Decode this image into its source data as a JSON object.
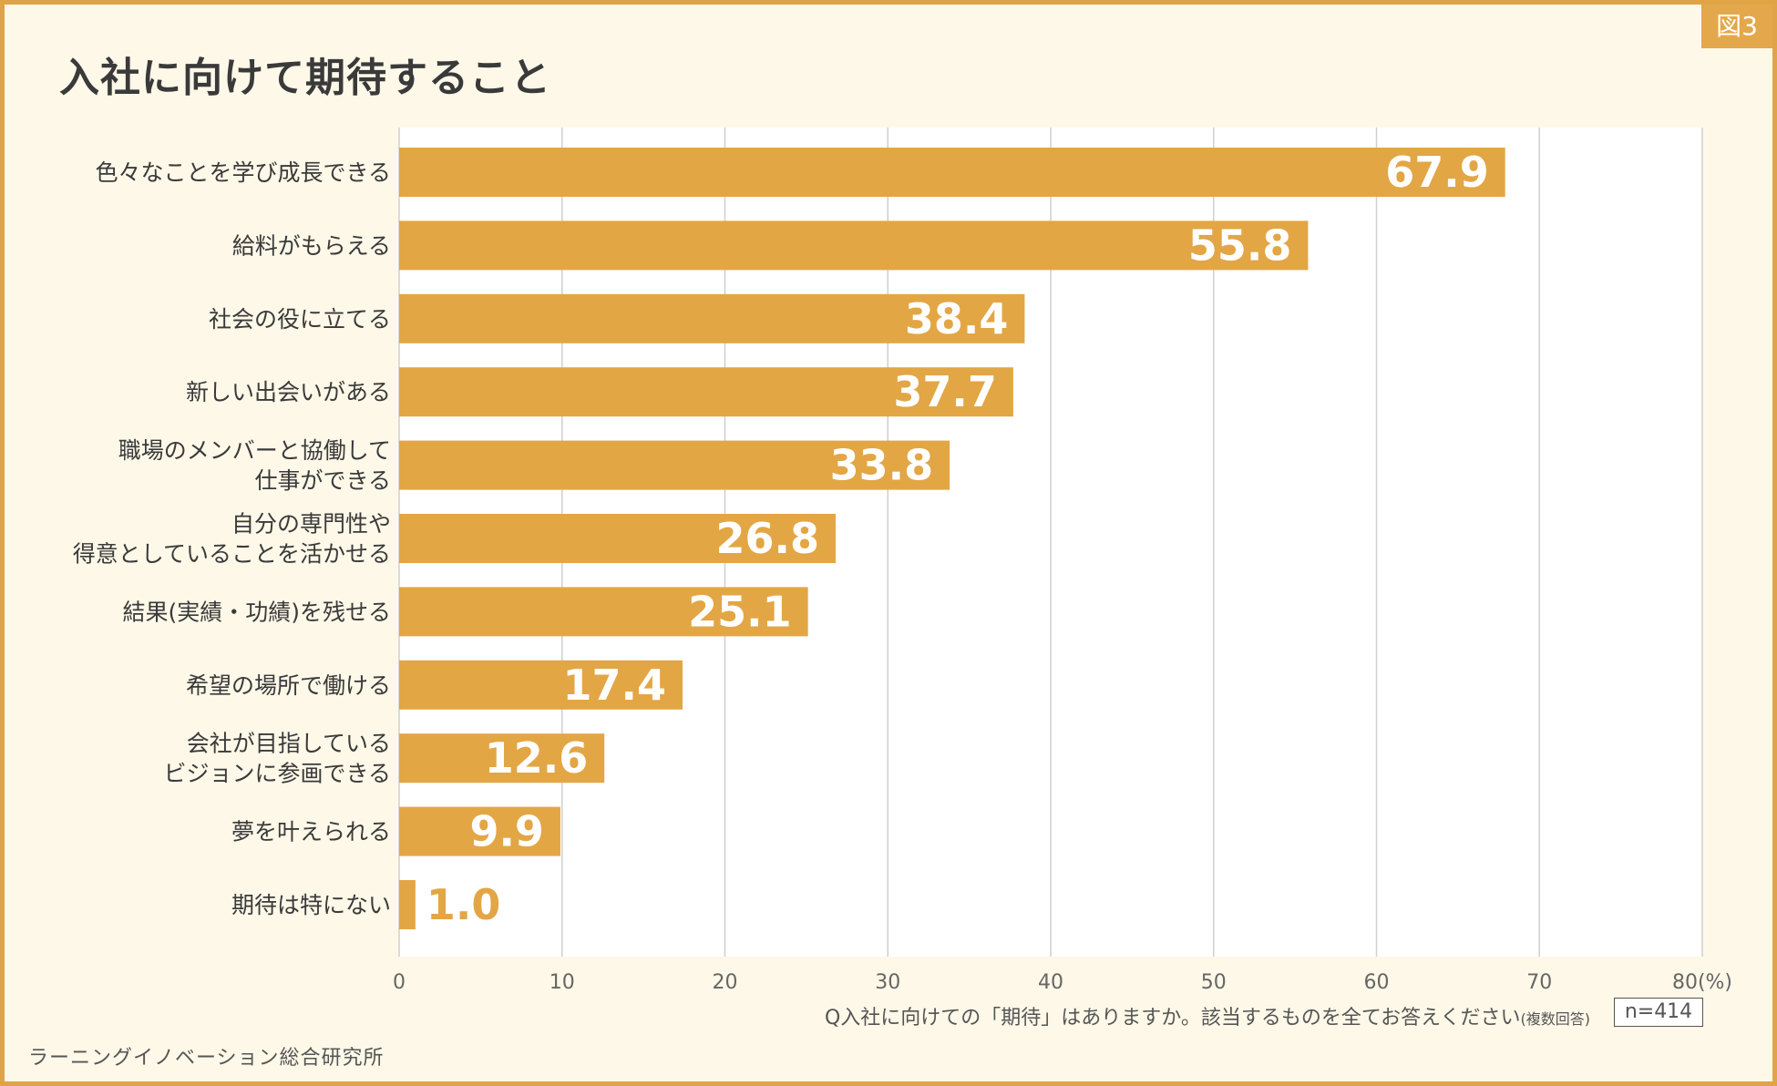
{
  "figure_label": "図3",
  "question": {
    "main": "Q入社に向けての「期待」はありますか。該当するものを全てお答えください",
    "note": "(複数回答)"
  },
  "sample_size": "n=414",
  "source": "ラーニングイノベーション総合研究所",
  "colors": {
    "bar": "#e3a645",
    "background": "#fdf8e8",
    "border": "#e0a446",
    "grid": "#cfcfcf"
  },
  "chart_data": {
    "type": "bar",
    "orientation": "horizontal",
    "title": "入社に向けて期待すること",
    "categories": [
      [
        "色々なことを学び成長できる"
      ],
      [
        "給料がもらえる"
      ],
      [
        "社会の役に立てる"
      ],
      [
        "新しい出会いがある"
      ],
      [
        "職場のメンバーと協働して",
        "仕事ができる"
      ],
      [
        "自分の専門性や",
        "得意としていることを活かせる"
      ],
      [
        "結果(実績・功績)を残せる"
      ],
      [
        "希望の場所で働ける"
      ],
      [
        "会社が目指している",
        "ビジョンに参画できる"
      ],
      [
        "夢を叶えられる"
      ],
      [
        "期待は特にない"
      ]
    ],
    "values": [
      67.9,
      55.8,
      38.4,
      37.7,
      33.8,
      26.8,
      25.1,
      17.4,
      12.6,
      9.9,
      1.0
    ],
    "value_labels": [
      "67.9",
      "55.8",
      "38.4",
      "37.7",
      "33.8",
      "26.8",
      "25.1",
      "17.4",
      "12.6",
      "9.9",
      "1.0"
    ],
    "xlim": [
      0,
      80
    ],
    "x_ticks": [
      "0",
      "10",
      "20",
      "30",
      "40",
      "50",
      "60",
      "70",
      "80(%)"
    ],
    "grid": "vertical"
  }
}
